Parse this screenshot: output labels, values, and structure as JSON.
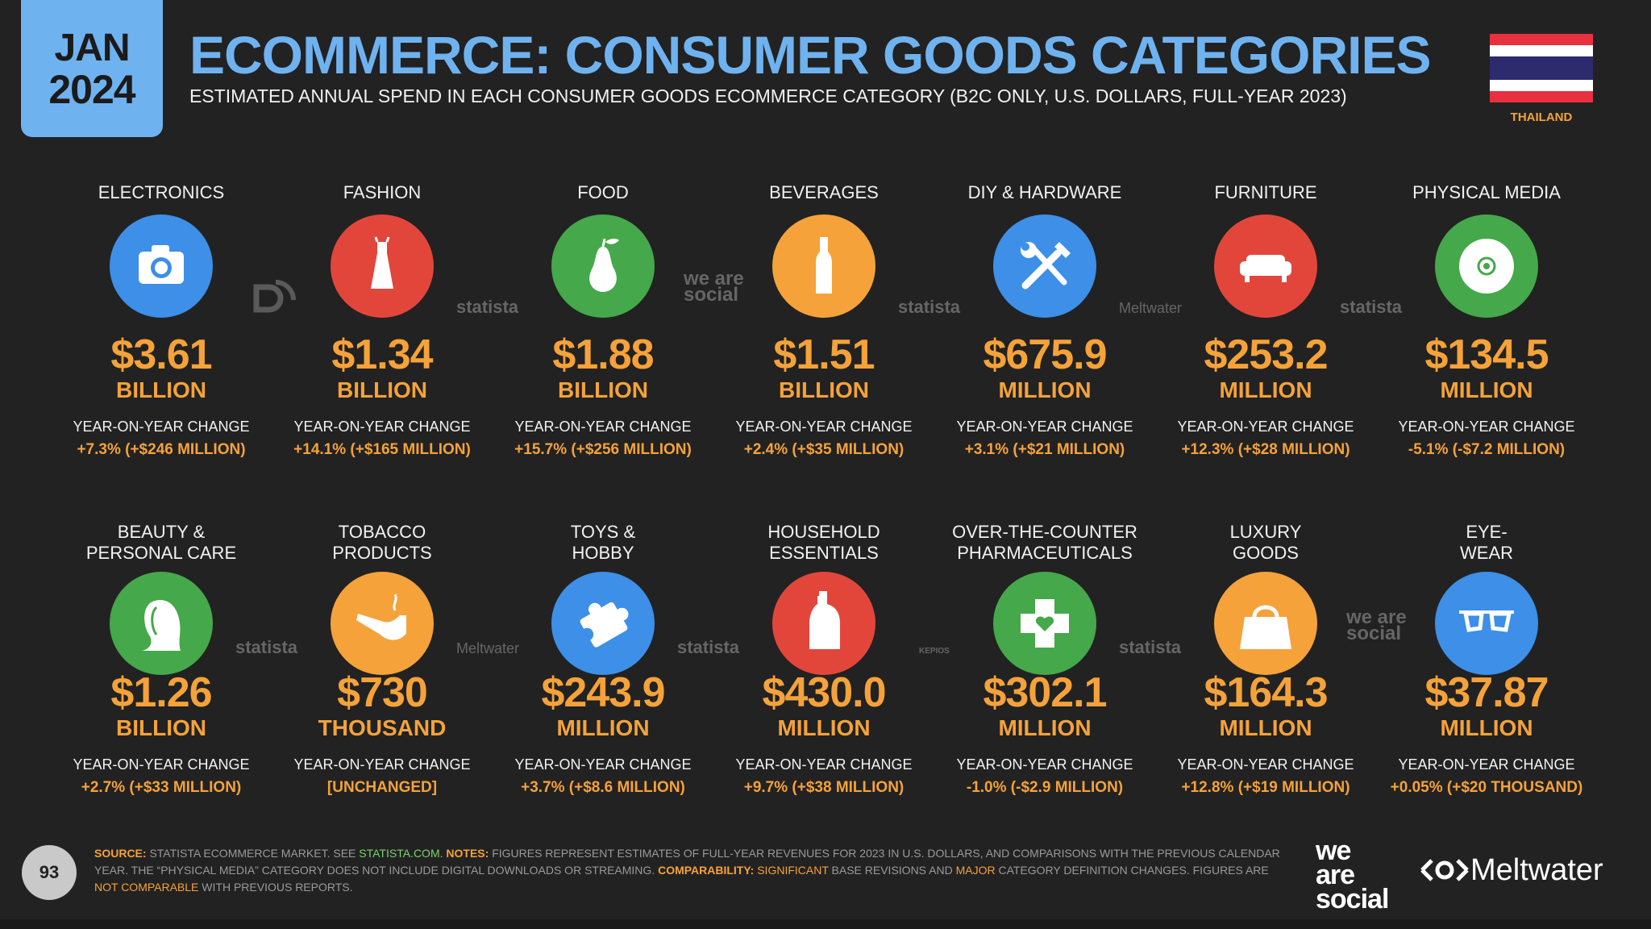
{
  "badge": {
    "month": "JAN",
    "year": "2024"
  },
  "header": {
    "title": "ECOMMERCE: CONSUMER GOODS CATEGORIES",
    "subtitle": "ESTIMATED ANNUAL SPEND IN EACH CONSUMER GOODS ECOMMERCE CATEGORY (B2C ONLY, U.S. DOLLARS, FULL-YEAR 2023)",
    "country": "THAILAND"
  },
  "yoy_label": "YEAR-ON-YEAR CHANGE",
  "colors": {
    "accent": "#f5a23a",
    "title": "#6fb2f0",
    "background": "#222222"
  },
  "chart_data": {
    "type": "table",
    "title": "ECOMMERCE: CONSUMER GOODS CATEGORIES",
    "columns": [
      "category",
      "value",
      "unit",
      "yoy_change"
    ],
    "rows": [
      {
        "category": "ELECTRONICS",
        "value": "$3.61",
        "unit": "BILLION",
        "yoy": "+7.3% (+$246 MILLION)",
        "icon": "camera-icon",
        "color": "#3d8fe8"
      },
      {
        "category": "FASHION",
        "value": "$1.34",
        "unit": "BILLION",
        "yoy": "+14.1% (+$165 MILLION)",
        "icon": "dress-icon",
        "color": "#e2463b"
      },
      {
        "category": "FOOD",
        "value": "$1.88",
        "unit": "BILLION",
        "yoy": "+15.7% (+$256 MILLION)",
        "icon": "pear-icon",
        "color": "#45a84a"
      },
      {
        "category": "BEVERAGES",
        "value": "$1.51",
        "unit": "BILLION",
        "yoy": "+2.4% (+$35 MILLION)",
        "icon": "bottle-icon",
        "color": "#f5a23a"
      },
      {
        "category": "DIY & HARDWARE",
        "value": "$675.9",
        "unit": "MILLION",
        "yoy": "+3.1% (+$21 MILLION)",
        "icon": "tools-icon",
        "color": "#3d8fe8"
      },
      {
        "category": "FURNITURE",
        "value": "$253.2",
        "unit": "MILLION",
        "yoy": "+12.3% (+$28 MILLION)",
        "icon": "sofa-icon",
        "color": "#e2463b"
      },
      {
        "category": "PHYSICAL MEDIA",
        "value": "$134.5",
        "unit": "MILLION",
        "yoy": "-5.1% (-$7.2 MILLION)",
        "icon": "disc-icon",
        "color": "#45a84a"
      },
      {
        "category": "BEAUTY & PERSONAL CARE",
        "value": "$1.26",
        "unit": "BILLION",
        "yoy": "+2.7% (+$33 MILLION)",
        "icon": "face-icon",
        "color": "#45a84a"
      },
      {
        "category": "TOBACCO PRODUCTS",
        "value": "$730",
        "unit": "THOUSAND",
        "yoy": "[UNCHANGED]",
        "icon": "pipe-icon",
        "color": "#f5a23a"
      },
      {
        "category": "TOYS & HOBBY",
        "value": "$243.9",
        "unit": "MILLION",
        "yoy": "+3.7% (+$8.6 MILLION)",
        "icon": "puzzle-icon",
        "color": "#3d8fe8"
      },
      {
        "category": "HOUSEHOLD ESSENTIALS",
        "value": "$430.0",
        "unit": "MILLION",
        "yoy": "+9.7% (+$38 MILLION)",
        "icon": "detergent-icon",
        "color": "#e2463b"
      },
      {
        "category": "OVER-THE-COUNTER PHARMACEUTICALS",
        "value": "$302.1",
        "unit": "MILLION",
        "yoy": "-1.0% (-$2.9 MILLION)",
        "icon": "medical-cross-icon",
        "color": "#45a84a"
      },
      {
        "category": "LUXURY GOODS",
        "value": "$164.3",
        "unit": "MILLION",
        "yoy": "+12.8% (+$19 MILLION)",
        "icon": "handbag-icon",
        "color": "#f5a23a"
      },
      {
        "category": "EYE-WEAR",
        "value": "$37.87",
        "unit": "MILLION",
        "yoy": "+0.05% (+$20 THOUSAND)",
        "icon": "glasses-icon",
        "color": "#3d8fe8"
      }
    ]
  },
  "display_names": [
    [
      "ELECTRONICS"
    ],
    [
      "FASHION"
    ],
    [
      "FOOD"
    ],
    [
      "BEVERAGES"
    ],
    [
      "DIY & HARDWARE"
    ],
    [
      "FURNITURE"
    ],
    [
      "PHYSICAL MEDIA"
    ],
    [
      "BEAUTY &",
      "PERSONAL CARE"
    ],
    [
      "TOBACCO",
      "PRODUCTS"
    ],
    [
      "TOYS &",
      "HOBBY"
    ],
    [
      "HOUSEHOLD",
      "ESSENTIALS"
    ],
    [
      "OVER-THE-COUNTER",
      "PHARMACEUTICALS"
    ],
    [
      "LUXURY",
      "GOODS"
    ],
    [
      "EYE-",
      "WEAR"
    ]
  ],
  "watermarks": [
    "statista",
    "we are social",
    "Meltwater",
    "KEPIOS"
  ],
  "footer": {
    "page": "93",
    "source_label": "SOURCE:",
    "source_text": "STATISTA ECOMMERCE MARKET. SEE",
    "source_link": "STATISTA.COM.",
    "notes_label": "NOTES:",
    "notes_text": "FIGURES REPRESENT ESTIMATES OF FULL-YEAR REVENUES FOR 2023 IN U.S. DOLLARS, AND COMPARISONS WITH THE PREVIOUS CALENDAR YEAR. THE “PHYSICAL MEDIA” CATEGORY DOES NOT INCLUDE DIGITAL DOWNLOADS OR STREAMING.",
    "comparability_label": "COMPARABILITY:",
    "significant": "SIGNIFICANT",
    "base_revisions": "BASE REVISIONS AND",
    "major": "MAJOR",
    "category_changes": "CATEGORY DEFINITION CHANGES. FIGURES ARE",
    "not_comparable": "NOT COMPARABLE",
    "with_previous": "WITH PREVIOUS REPORTS."
  },
  "brand": {
    "was_line1": "we",
    "was_line2": "are",
    "was_line3": "social",
    "meltwater": "Meltwater"
  }
}
